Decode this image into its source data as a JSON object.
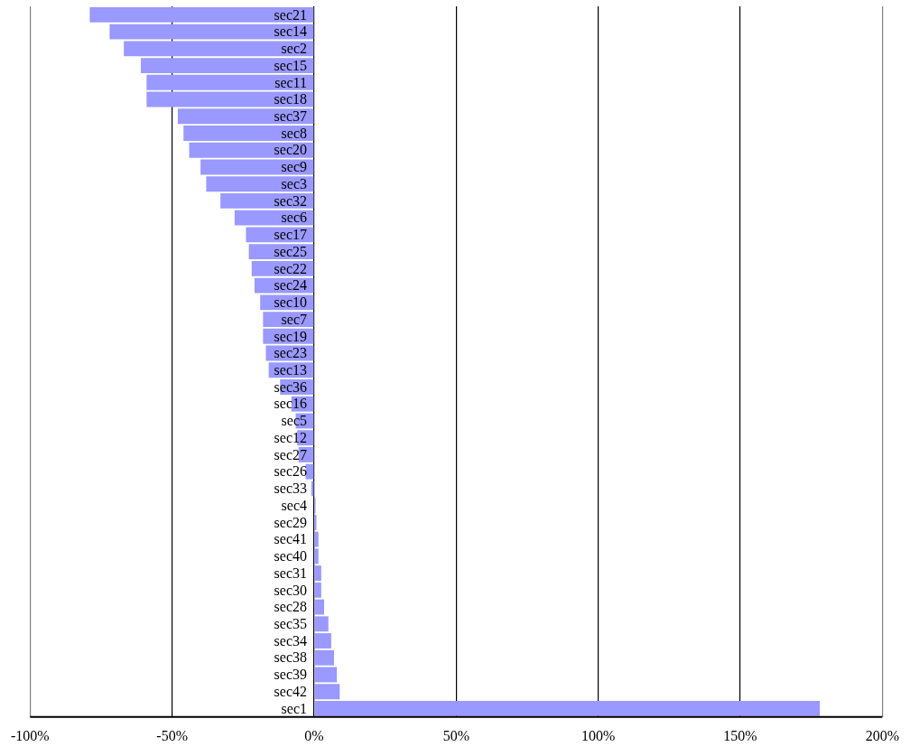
{
  "chart_data": {
    "type": "bar",
    "orientation": "horizontal",
    "categories": [
      "sec21",
      "sec14",
      "sec2",
      "sec15",
      "sec11",
      "sec18",
      "sec37",
      "sec8",
      "sec20",
      "sec9",
      "sec3",
      "sec32",
      "sec6",
      "sec17",
      "sec25",
      "sec22",
      "sec24",
      "sec10",
      "sec7",
      "sec19",
      "sec23",
      "sec13",
      "sec36",
      "sec16",
      "sec5",
      "sec12",
      "sec27",
      "sec26",
      "sec33",
      "sec4",
      "sec29",
      "sec41",
      "sec40",
      "sec31",
      "sec30",
      "sec28",
      "sec35",
      "sec34",
      "sec38",
      "sec39",
      "sec42",
      "sec1"
    ],
    "values": [
      -79,
      -72,
      -67,
      -61,
      -59,
      -59,
      -48,
      -46,
      -44,
      -40,
      -38,
      -33,
      -28,
      -24,
      -23,
      -22,
      -21,
      -19,
      -18,
      -18,
      -17,
      -16,
      -12,
      -8,
      -6.5,
      -6,
      -5.5,
      -3,
      -1,
      0.5,
      0.8,
      1.5,
      1.5,
      2.5,
      2.5,
      3.5,
      5,
      6,
      7,
      8,
      9,
      178
    ],
    "color": "#9999ff",
    "xlim": [
      -100,
      200
    ],
    "xticks": [
      {
        "value": -100,
        "label": "-100%"
      },
      {
        "value": -50,
        "label": "-50%"
      },
      {
        "value": 0,
        "label": "0%"
      },
      {
        "value": 50,
        "label": "50%"
      },
      {
        "value": 100,
        "label": "100%"
      },
      {
        "value": 150,
        "label": "150%"
      },
      {
        "value": 200,
        "label": "200%"
      }
    ],
    "grid": "x",
    "legend": false
  }
}
